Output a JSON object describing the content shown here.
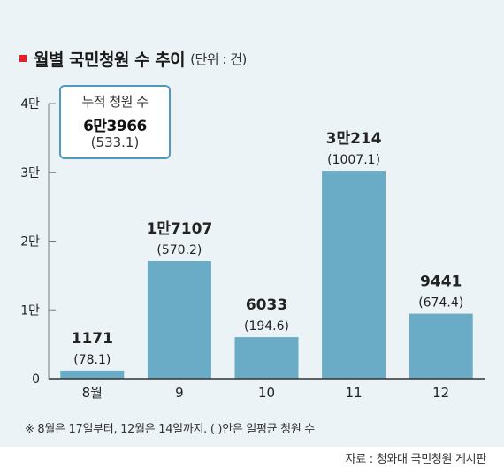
{
  "title": "월별 국민청원 수 추이",
  "unit_label": "(단위 : 건)",
  "total_box": {
    "label": "누적 청원 수",
    "value": "6만3966",
    "average": "(533.1)"
  },
  "footnote": "※ 8월은 17일부터, 12월은 14일까지. (   )안은 일평균 청원 수",
  "source": "자료 : 청와대 국민청원 게시판",
  "colors": {
    "bar": "#6aabc5",
    "panel": "#ecf3f6",
    "accent": "#e5202b"
  },
  "chart_data": {
    "type": "bar",
    "categories": [
      "8월",
      "9",
      "10",
      "11",
      "12"
    ],
    "values": [
      1171,
      17107,
      6033,
      30214,
      9441
    ],
    "value_labels": [
      "1171",
      "1만7107",
      "6033",
      "3만214",
      "9441"
    ],
    "average_labels": [
      "(78.1)",
      "(570.2)",
      "(194.6)",
      "(1007.1)",
      "(674.4)"
    ],
    "y_ticks": [
      0,
      10000,
      20000,
      30000,
      40000
    ],
    "y_tick_labels": [
      "0",
      "1만",
      "2만",
      "3만",
      "4만"
    ],
    "ylim": [
      0,
      40000
    ],
    "grid": false
  }
}
